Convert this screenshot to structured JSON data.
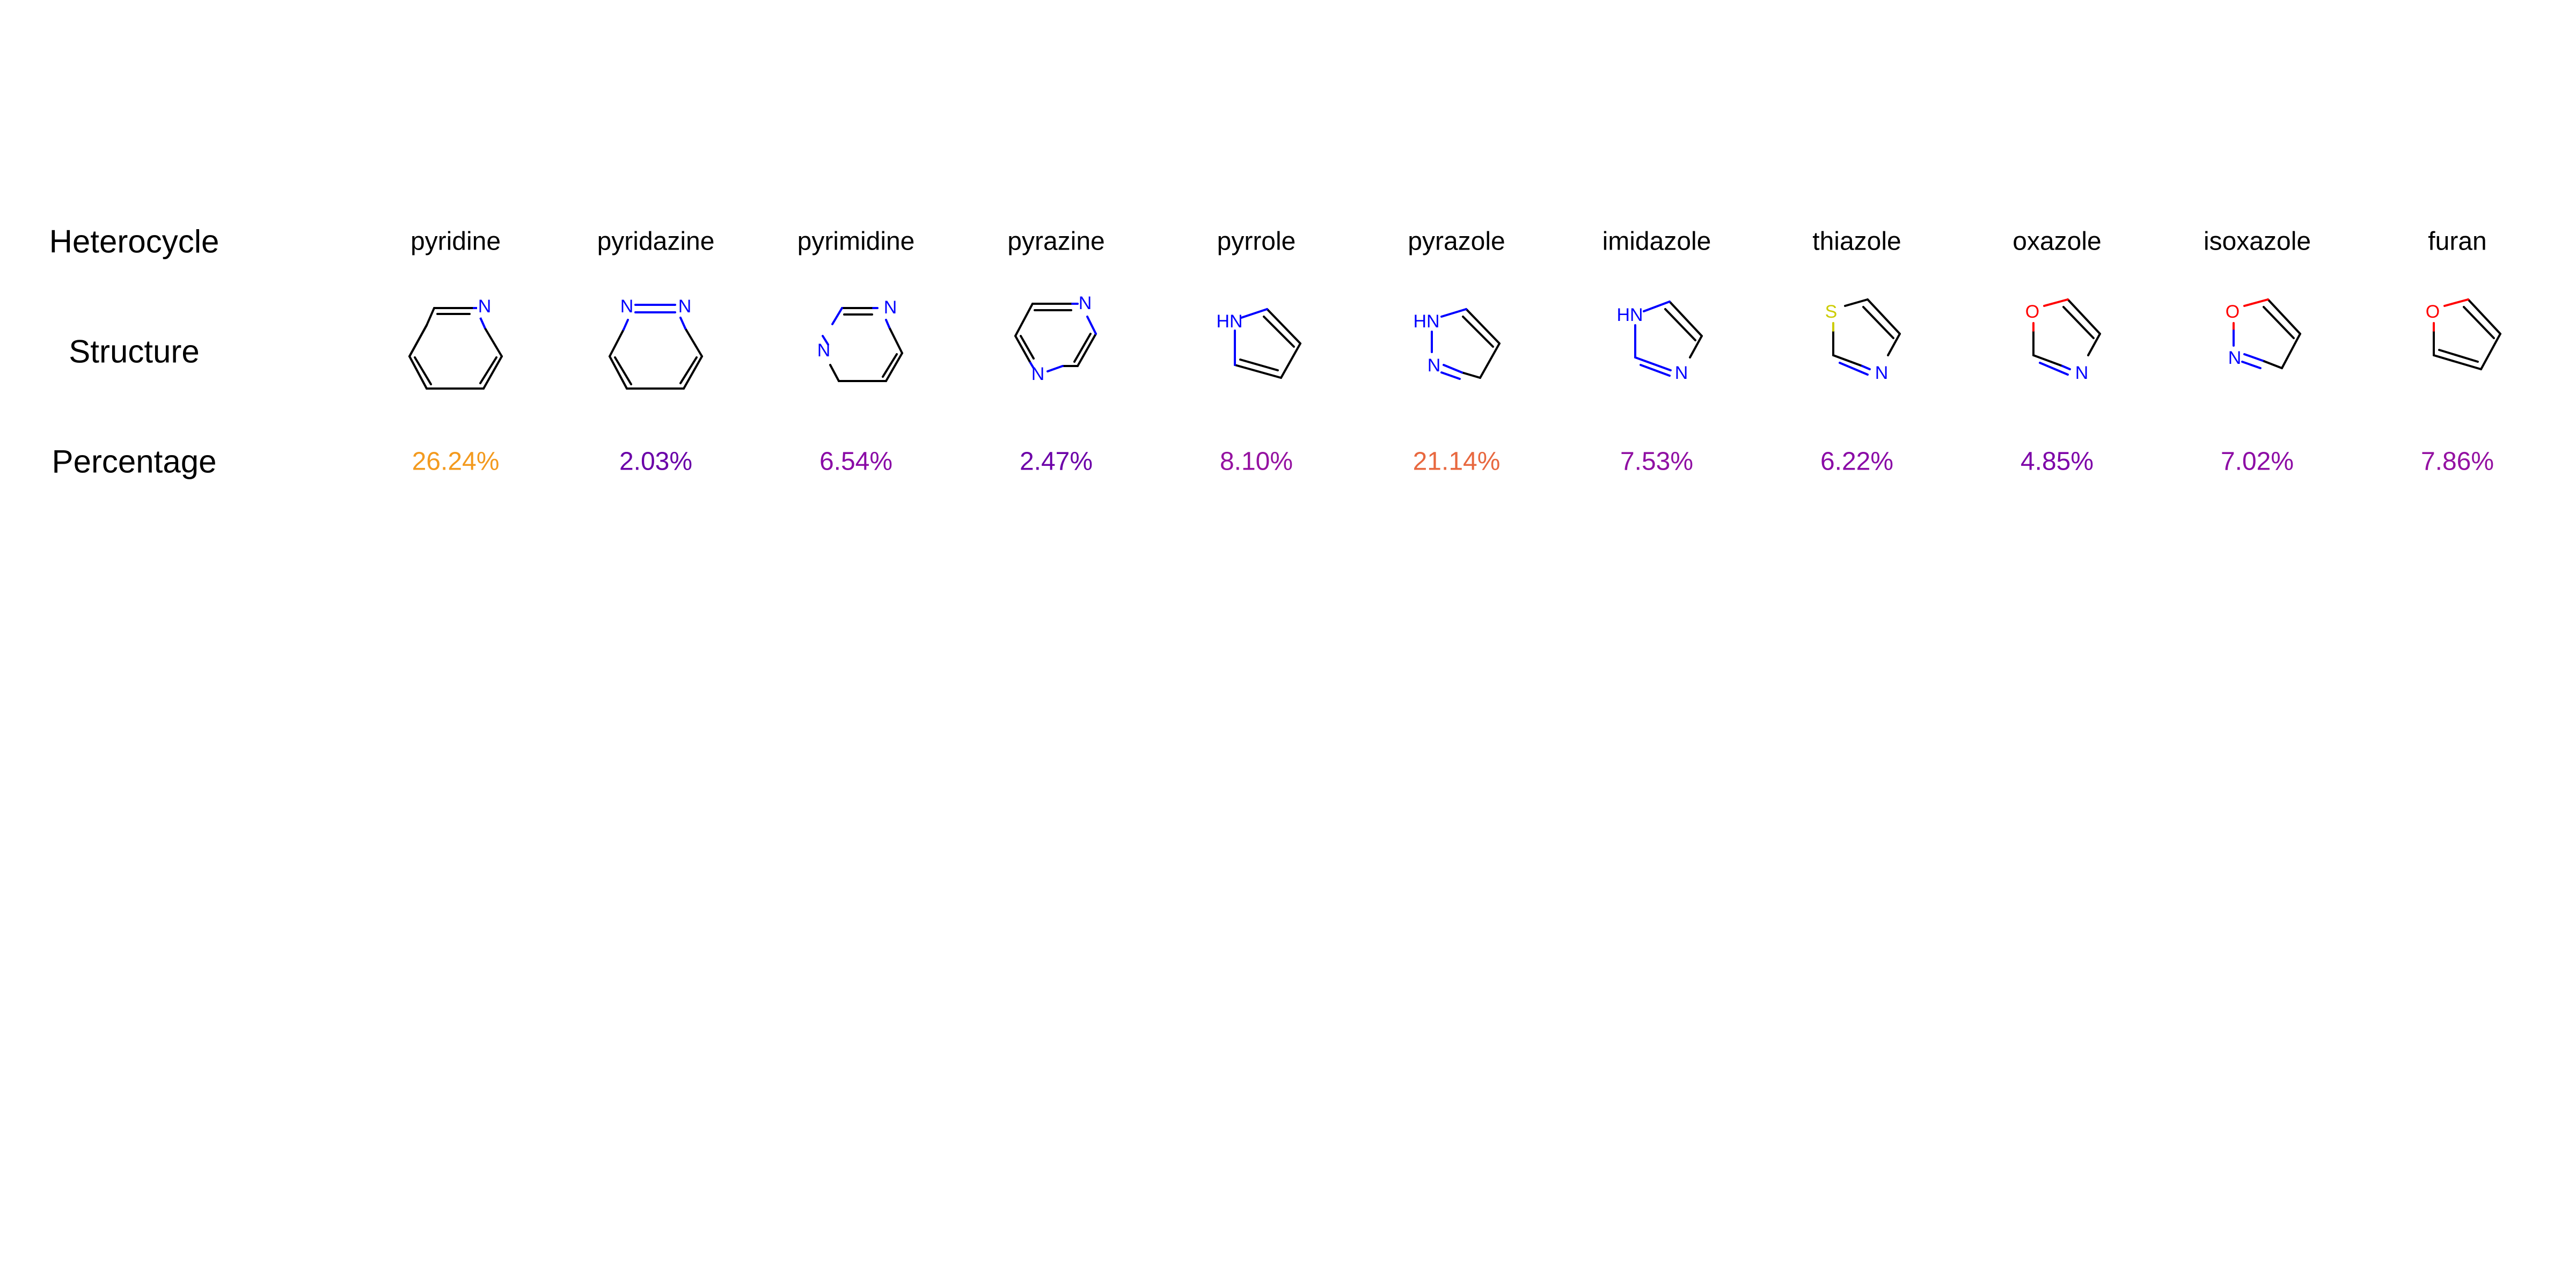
{
  "row_headers": {
    "heterocycle": "Heterocycle",
    "structure": "Structure",
    "percentage": "Percentage"
  },
  "colors": {
    "bond": "#000000",
    "nitrogen": "#0000ff",
    "oxygen": "#ff0000",
    "sulfur": "#cccc00"
  },
  "columns": [
    {
      "name": "pyridine",
      "percentage": "26.24%",
      "color": "#f39a1e",
      "icon": "pyridine-structure-icon"
    },
    {
      "name": "pyridazine",
      "percentage": "2.03%",
      "color": "#6a00a8",
      "icon": "pyridazine-structure-icon"
    },
    {
      "name": "pyrimidine",
      "percentage": "6.54%",
      "color": "#8a0aa6",
      "icon": "pyrimidine-structure-icon"
    },
    {
      "name": "pyrazine",
      "percentage": "2.47%",
      "color": "#6c00a8",
      "icon": "pyrazine-structure-icon"
    },
    {
      "name": "pyrrole",
      "percentage": "8.10%",
      "color": "#9512a1",
      "icon": "pyrrole-structure-icon"
    },
    {
      "name": "pyrazole",
      "percentage": "21.14%",
      "color": "#e8683f",
      "icon": "pyrazole-structure-icon"
    },
    {
      "name": "imidazole",
      "percentage": "7.53%",
      "color": "#9010a3",
      "icon": "imidazole-structure-icon"
    },
    {
      "name": "thiazole",
      "percentage": "6.22%",
      "color": "#8a0aa6",
      "icon": "thiazole-structure-icon"
    },
    {
      "name": "oxazole",
      "percentage": "4.85%",
      "color": "#7d03a8",
      "icon": "oxazole-structure-icon"
    },
    {
      "name": "isoxazole",
      "percentage": "7.02%",
      "color": "#8d0ca5",
      "icon": "isoxazole-structure-icon"
    },
    {
      "name": "furan",
      "percentage": "7.86%",
      "color": "#9411a2",
      "icon": "furan-structure-icon"
    }
  ]
}
